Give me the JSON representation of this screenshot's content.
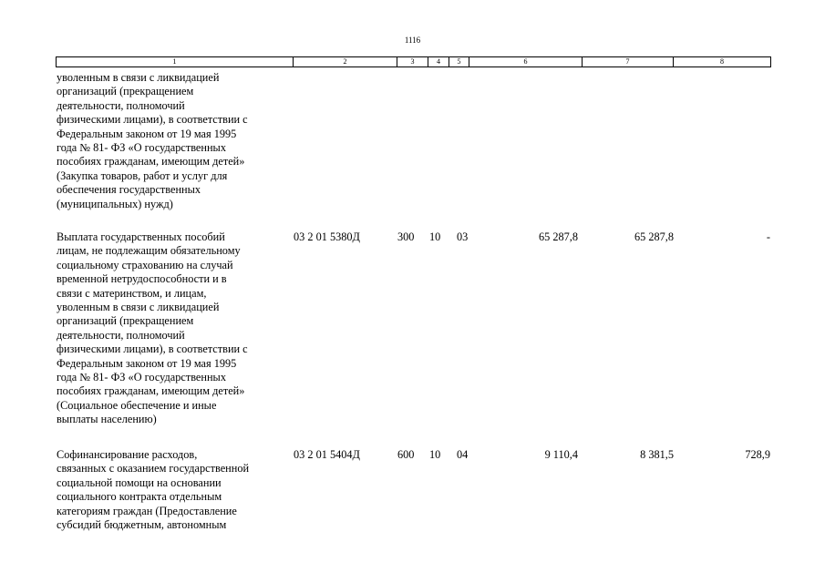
{
  "page": {
    "number": "1116"
  },
  "columns": [
    "1",
    "2",
    "3",
    "4",
    "5",
    "6",
    "7",
    "8"
  ],
  "rows": [
    {
      "text": "уволенным в связи с ликвидацией\nорганизаций (прекращением\nдеятельности, полномочий\nфизическими лицами), в соответствии с\nФедеральным законом от 19 мая 1995\nгода № 81- ФЗ «О государственных\nпособиях гражданам, имеющим детей»\n(Закупка товаров, работ и услуг для\nобеспечения государственных\n(муниципальных) нужд)",
      "code": "",
      "c3": "",
      "c4": "",
      "c5": "",
      "c6": "",
      "c7": "",
      "c8": ""
    },
    {
      "text": "Выплата государственных пособий\nлицам, не подлежащим обязательному\nсоциальному страхованию на случай\nвременной нетрудоспособности и в\nсвязи с материнством, и лицам,\nуволенным в связи с ликвидацией\nорганизаций (прекращением\nдеятельности, полномочий\nфизическими лицами), в соответствии с\nФедеральным законом от 19 мая 1995\nгода № 81- ФЗ «О государственных\nпособиях гражданам, имеющим детей»\n(Социальное обеспечение и иные\nвыплаты населению)",
      "code": "03 2 01 5380Д",
      "c3": "300",
      "c4": "10",
      "c5": "03",
      "c6": "65 287,8",
      "c7": "65 287,8",
      "c8": "-"
    },
    {
      "text": "Софинансирование расходов,\nсвязанных с оказанием государственной\nсоциальной помощи на основании\nсоциального контракта отдельным\nкатегориям граждан (Предоставление\nсубсидий бюджетным, автономным",
      "code": "03 2 01 5404Д",
      "c3": "600",
      "c4": "10",
      "c5": "04",
      "c6": "9 110,4",
      "c7": "8 381,5",
      "c8": "728,9"
    }
  ]
}
